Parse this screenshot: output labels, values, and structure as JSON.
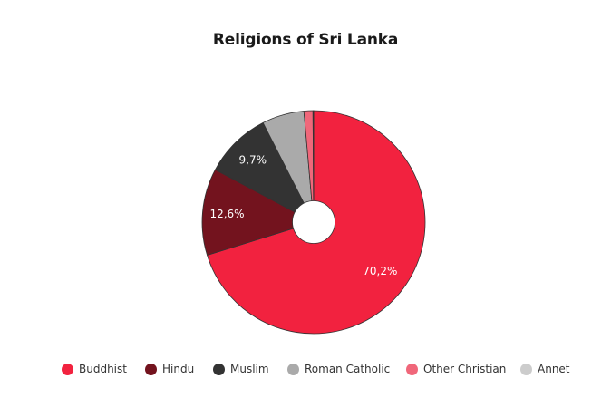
{
  "chart_data": {
    "type": "pie",
    "title": "Religions of Sri Lanka",
    "donut": true,
    "slices": [
      {
        "name": "Buddhist",
        "value": 70.2,
        "label": "70,2%",
        "color": "#f2223f"
      },
      {
        "name": "Hindu",
        "value": 12.6,
        "label": "12,6%",
        "color": "#73131e"
      },
      {
        "name": "Muslim",
        "value": 9.7,
        "label": "9,7%",
        "color": "#333333"
      },
      {
        "name": "Roman Catholic",
        "value": 6.1,
        "label": "",
        "color": "#aaaaaa"
      },
      {
        "name": "Other Christian",
        "value": 1.3,
        "label": "",
        "color": "#f0677a"
      },
      {
        "name": "Annet",
        "value": 0.1,
        "label": "",
        "color": "#cccccc"
      }
    ],
    "legend_position": "bottom"
  }
}
